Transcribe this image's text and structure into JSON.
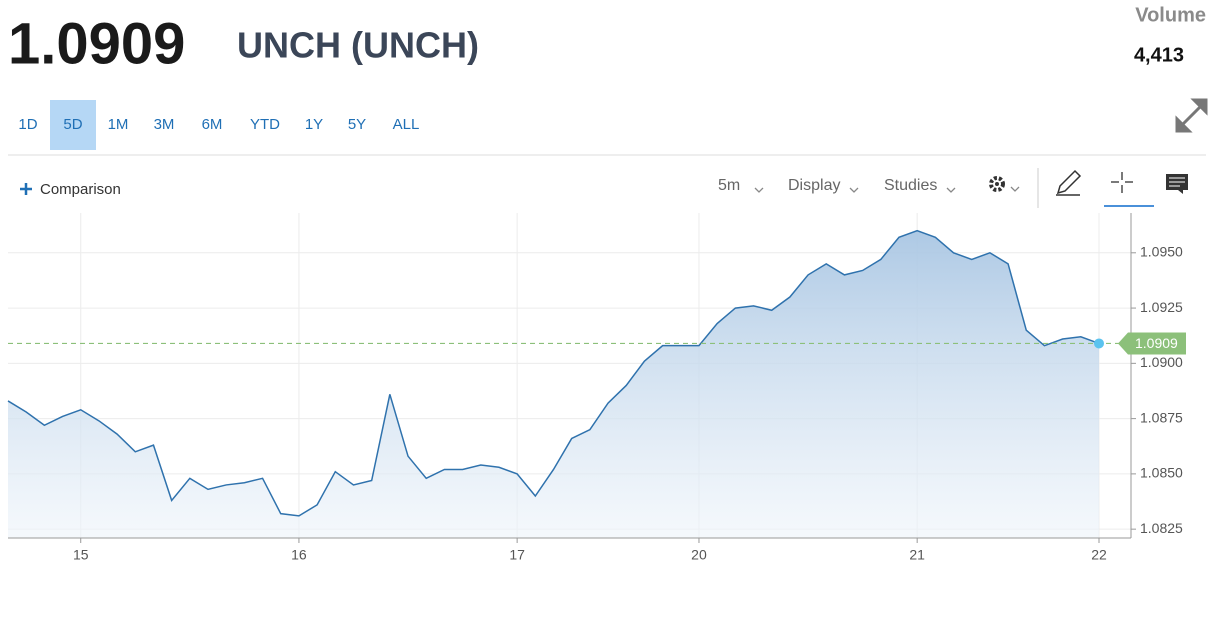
{
  "header": {
    "price": "1.0909",
    "name": "UNCH (UNCH)",
    "volume_label": "Volume",
    "volume": "4,413"
  },
  "ranges": [
    "1D",
    "5D",
    "1M",
    "3M",
    "6M",
    "YTD",
    "1Y",
    "5Y",
    "ALL"
  ],
  "selected_range": 1,
  "toolbar": {
    "comparison": "Comparison",
    "interval": "5m",
    "display": "Display",
    "studies": "Studies"
  },
  "chart_data": {
    "type": "area",
    "color": "#2f72ad",
    "categories": [
      null,
      null,
      null,
      null,
      "15",
      null,
      null,
      null,
      null,
      null,
      null,
      null,
      null,
      null,
      null,
      null,
      "16",
      null,
      null,
      null,
      null,
      null,
      null,
      null,
      null,
      null,
      null,
      null,
      "17",
      null,
      null,
      null,
      null,
      null,
      null,
      null,
      null,
      null,
      "20",
      null,
      null,
      null,
      null,
      null,
      null,
      null,
      null,
      null,
      null,
      null,
      "21",
      null,
      null,
      null,
      null,
      null,
      null,
      null,
      null,
      null,
      "22"
    ],
    "values": [
      1.0883,
      1.0878,
      1.0872,
      1.0876,
      1.0879,
      1.0874,
      1.0868,
      1.086,
      1.0863,
      1.0838,
      1.0848,
      1.0843,
      1.0845,
      1.0846,
      1.0848,
      1.0832,
      1.0831,
      1.0836,
      1.0851,
      1.0845,
      1.0847,
      1.0886,
      1.0858,
      1.0848,
      1.0852,
      1.0852,
      1.0854,
      1.0853,
      1.085,
      1.084,
      1.0852,
      1.0866,
      1.087,
      1.0882,
      1.089,
      1.0901,
      1.0908,
      1.0908,
      1.0908,
      1.0918,
      1.0925,
      1.0926,
      1.0924,
      1.093,
      1.094,
      1.0945,
      1.094,
      1.0942,
      1.0947,
      1.0957,
      1.096,
      1.0957,
      1.095,
      1.0947,
      1.095,
      1.0945,
      1.0915,
      1.0908,
      1.0911,
      1.0912,
      1.0909
    ],
    "ylim": [
      1.0821,
      1.0968
    ],
    "yticks": [
      1.0825,
      {
        "value": 1.085,
        "label": "1.0850"
      },
      1.0875,
      {
        "value": 1.09,
        "label": "1.0900"
      },
      1.0925,
      {
        "value": 1.095,
        "label": "1.0950"
      }
    ],
    "grid": true,
    "last_value": 1.0909,
    "last_color": "#8cc07a"
  }
}
